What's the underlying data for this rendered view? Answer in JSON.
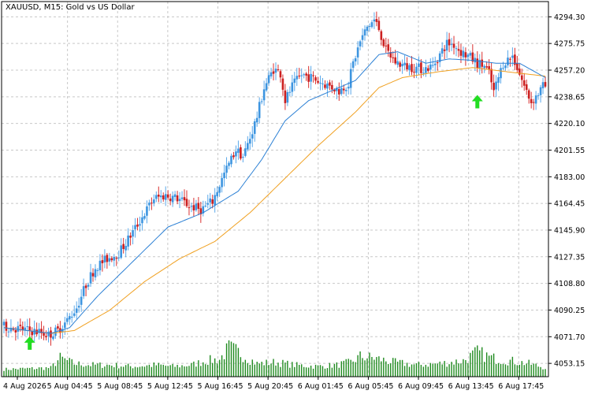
{
  "window": {
    "title": "XAUUSD, M15:  Gold vs US Dollar"
  },
  "colors": {
    "background": "#ffffff",
    "grid": "#c8c8c8",
    "axis": "#000000",
    "bull_candle": "#3d95e0",
    "bull_wick": "#5aa8ea",
    "bear_candle": "#cc1f1f",
    "bear_wick": "#d93030",
    "fast_ma": "#2a7fd4",
    "slow_ma": "#f0a020",
    "volume": "#1e8a1e",
    "signal_arrow": "#22dd22"
  },
  "chart_data": {
    "type": "candlestick",
    "symbol": "XAUUSD",
    "timeframe": "M15",
    "description": "Gold vs US Dollar",
    "grid": true,
    "y_axis": {
      "position": "right",
      "ylim": [
        4043.9,
        4304.9
      ],
      "ticks": [
        4294.3,
        4275.75,
        4257.2,
        4238.65,
        4220.1,
        4201.55,
        4183.0,
        4164.45,
        4145.9,
        4127.35,
        4108.8,
        4090.25,
        4071.7,
        4053.15
      ],
      "tick_labels": [
        "4294.30",
        "4275.75",
        "4257.20",
        "4238.65",
        "4220.10",
        "4201.55",
        "4183.00",
        "4164.45",
        "4145.90",
        "4127.35",
        "4108.80",
        "4090.25",
        "4071.70",
        "4053.15"
      ]
    },
    "x_axis": {
      "tick_labels": [
        "4 Aug 2026",
        "5 Aug 04:45",
        "5 Aug 08:45",
        "5 Aug 12:45",
        "5 Aug 16:45",
        "5 Aug 20:45",
        "6 Aug 01:45",
        "6 Aug 05:45",
        "6 Aug 09:45",
        "6 Aug 13:45",
        "6 Aug 17:45"
      ]
    },
    "price_path": [
      [
        0,
        4079
      ],
      [
        8,
        4077
      ],
      [
        16,
        4075
      ],
      [
        20,
        4073
      ],
      [
        24,
        4076
      ],
      [
        28,
        4083
      ],
      [
        32,
        4092
      ],
      [
        36,
        4108
      ],
      [
        40,
        4120
      ],
      [
        45,
        4126
      ],
      [
        50,
        4130
      ],
      [
        55,
        4142
      ],
      [
        60,
        4155
      ],
      [
        65,
        4168
      ],
      [
        70,
        4170
      ],
      [
        75,
        4168
      ],
      [
        80,
        4163
      ],
      [
        85,
        4160
      ],
      [
        90,
        4166
      ],
      [
        95,
        4185
      ],
      [
        100,
        4202
      ],
      [
        103,
        4197
      ],
      [
        106,
        4210
      ],
      [
        109,
        4225
      ],
      [
        112,
        4245
      ],
      [
        116,
        4258
      ],
      [
        119,
        4255
      ],
      [
        121,
        4236
      ],
      [
        124,
        4246
      ],
      [
        128,
        4254
      ],
      [
        132,
        4252
      ],
      [
        136,
        4249
      ],
      [
        140,
        4246
      ],
      [
        144,
        4243
      ],
      [
        148,
        4248
      ],
      [
        150,
        4262
      ],
      [
        153,
        4277
      ],
      [
        156,
        4287
      ],
      [
        159,
        4292
      ],
      [
        161,
        4286
      ],
      [
        164,
        4271
      ],
      [
        168,
        4263
      ],
      [
        172,
        4260
      ],
      [
        176,
        4259
      ],
      [
        180,
        4258
      ],
      [
        184,
        4260
      ],
      [
        187,
        4268
      ],
      [
        190,
        4276
      ],
      [
        193,
        4275
      ],
      [
        196,
        4270
      ],
      [
        200,
        4266
      ],
      [
        203,
        4262
      ],
      [
        206,
        4260
      ],
      [
        208,
        4255
      ],
      [
        210,
        4242
      ],
      [
        214,
        4262
      ],
      [
        218,
        4267
      ],
      [
        220,
        4259
      ],
      [
        223,
        4246
      ],
      [
        226,
        4235
      ],
      [
        229,
        4241
      ],
      [
        231,
        4246
      ]
    ],
    "fast_ma": [
      [
        0,
        4078
      ],
      [
        20,
        4074
      ],
      [
        28,
        4078
      ],
      [
        40,
        4100
      ],
      [
        55,
        4124
      ],
      [
        70,
        4148
      ],
      [
        85,
        4158
      ],
      [
        100,
        4173
      ],
      [
        110,
        4195
      ],
      [
        120,
        4222
      ],
      [
        130,
        4236
      ],
      [
        140,
        4243
      ],
      [
        150,
        4250
      ],
      [
        160,
        4268
      ],
      [
        168,
        4270
      ],
      [
        180,
        4262
      ],
      [
        190,
        4265
      ],
      [
        200,
        4264
      ],
      [
        210,
        4262
      ],
      [
        220,
        4262
      ],
      [
        231,
        4252
      ]
    ],
    "slow_ma": [
      [
        0,
        4078
      ],
      [
        20,
        4074
      ],
      [
        30,
        4076
      ],
      [
        45,
        4090
      ],
      [
        60,
        4110
      ],
      [
        75,
        4126
      ],
      [
        90,
        4138
      ],
      [
        105,
        4158
      ],
      [
        120,
        4182
      ],
      [
        135,
        4206
      ],
      [
        150,
        4228
      ],
      [
        160,
        4245
      ],
      [
        170,
        4252
      ],
      [
        185,
        4256
      ],
      [
        200,
        4259
      ],
      [
        215,
        4256
      ],
      [
        231,
        4253
      ]
    ],
    "signals": [
      {
        "type": "buy",
        "bar": 11,
        "price": 4067
      },
      {
        "type": "buy",
        "bar": 202,
        "price": 4235
      }
    ],
    "volume_profile": [
      [
        0,
        0.15
      ],
      [
        20,
        0.2
      ],
      [
        24,
        0.55
      ],
      [
        30,
        0.35
      ],
      [
        38,
        0.3
      ],
      [
        45,
        0.3
      ],
      [
        55,
        0.25
      ],
      [
        65,
        0.3
      ],
      [
        72,
        0.25
      ],
      [
        80,
        0.3
      ],
      [
        86,
        0.45
      ],
      [
        92,
        0.5
      ],
      [
        96,
        0.9
      ],
      [
        100,
        0.75
      ],
      [
        108,
        0.35
      ],
      [
        116,
        0.4
      ],
      [
        124,
        0.3
      ],
      [
        134,
        0.25
      ],
      [
        142,
        0.3
      ],
      [
        148,
        0.4
      ],
      [
        152,
        0.6
      ],
      [
        158,
        0.55
      ],
      [
        166,
        0.4
      ],
      [
        176,
        0.3
      ],
      [
        186,
        0.35
      ],
      [
        196,
        0.45
      ],
      [
        202,
        0.75
      ],
      [
        208,
        0.55
      ],
      [
        216,
        0.45
      ],
      [
        224,
        0.35
      ],
      [
        231,
        0.2
      ]
    ]
  }
}
